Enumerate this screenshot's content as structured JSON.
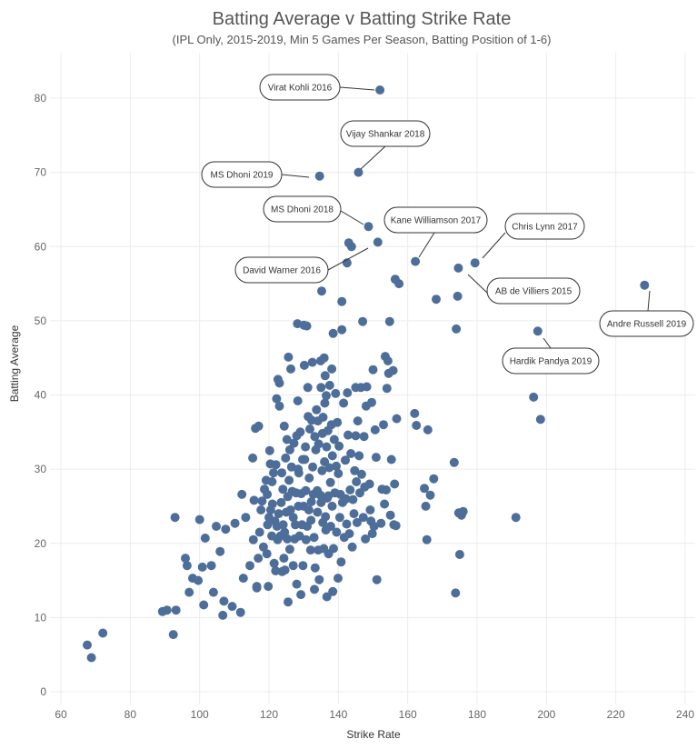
{
  "chart_data": {
    "type": "scatter",
    "title": "Batting Average v Batting Strike Rate",
    "subtitle": "(IPL Only, 2015-2019, Min 5 Games Per Season, Batting Position of 1-6)",
    "xlabel": "Strike Rate",
    "ylabel": "Batting Average",
    "xlim": [
      60,
      240
    ],
    "ylim": [
      0,
      85
    ],
    "xticks": [
      60,
      80,
      100,
      120,
      140,
      160,
      180,
      200,
      220,
      240
    ],
    "yticks": [
      0,
      10,
      20,
      30,
      40,
      50,
      60,
      70,
      80
    ],
    "grid": true,
    "point_color": "#4e6e9a",
    "annotations": [
      {
        "label": "Virat Kohli 2016",
        "x": 152,
        "y": 81.1
      },
      {
        "label": "Vijay Shankar 2018",
        "x": 146,
        "y": 70
      },
      {
        "label": "MS Dhoni 2019",
        "x": 134.6,
        "y": 69.5
      },
      {
        "label": "MS Dhoni 2018",
        "x": 148.7,
        "y": 62.7
      },
      {
        "label": "Kane Williamson 2017",
        "x": 162.2,
        "y": 58
      },
      {
        "label": "Chris Lynn 2017",
        "x": 179.4,
        "y": 57.8
      },
      {
        "label": "David Warner 2016",
        "x": 151.4,
        "y": 60.6
      },
      {
        "label": "AB de Villiers 2015",
        "x": 174.6,
        "y": 57.1
      },
      {
        "label": "Andre Russell 2019",
        "x": 228.3,
        "y": 54.8
      },
      {
        "label": "Hardik Pandya 2019",
        "x": 197.5,
        "y": 48.6
      }
    ],
    "points": [
      [
        67.6,
        6.3
      ],
      [
        68.8,
        4.6
      ],
      [
        72.1,
        7.9
      ],
      [
        89.3,
        10.8
      ],
      [
        90.6,
        11
      ],
      [
        92.4,
        7.7
      ],
      [
        92.9,
        23.5
      ],
      [
        93.2,
        11
      ],
      [
        95.9,
        18
      ],
      [
        96.4,
        17
      ],
      [
        97,
        13.4
      ],
      [
        98,
        15.3
      ],
      [
        99.6,
        15
      ],
      [
        100,
        23.2
      ],
      [
        100.8,
        16.8
      ],
      [
        101.2,
        11.7
      ],
      [
        101.6,
        20.7
      ],
      [
        103.4,
        17
      ],
      [
        104,
        13.4
      ],
      [
        104.8,
        22.3
      ],
      [
        105.9,
        18.9
      ],
      [
        106.7,
        10.3
      ],
      [
        107,
        12.2
      ],
      [
        107.5,
        21.9
      ],
      [
        109.4,
        11.5
      ],
      [
        110.2,
        22.7
      ],
      [
        111.8,
        10.7
      ],
      [
        112.2,
        26.6
      ],
      [
        112.6,
        15.3
      ],
      [
        113.3,
        23.5
      ],
      [
        114.5,
        17
      ],
      [
        115.3,
        31.5
      ],
      [
        115.5,
        20.5
      ],
      [
        115.7,
        25.8
      ],
      [
        116.1,
        35.5
      ],
      [
        116.5,
        14.2
      ],
      [
        116.5,
        14
      ],
      [
        116.9,
        18
      ],
      [
        117,
        35.8
      ],
      [
        117.3,
        21.5
      ],
      [
        117.7,
        24.5
      ],
      [
        118,
        25.7
      ],
      [
        118.4,
        19.5
      ],
      [
        118.7,
        27.3
      ],
      [
        119.2,
        28.5
      ],
      [
        119.4,
        18.6
      ],
      [
        119.5,
        26.6
      ],
      [
        119.6,
        22.5
      ],
      [
        119.8,
        14.2
      ],
      [
        120,
        23.5
      ],
      [
        120.2,
        32.5
      ],
      [
        120.4,
        30.7
      ],
      [
        120.5,
        24.5
      ],
      [
        120.8,
        21
      ],
      [
        120.9,
        28.3
      ],
      [
        121,
        25.3
      ],
      [
        121.3,
        29.5
      ],
      [
        121.5,
        17.3
      ],
      [
        121.7,
        23
      ],
      [
        121.9,
        16.3
      ],
      [
        122,
        30.6
      ],
      [
        122.2,
        39.5
      ],
      [
        122.3,
        22.3
      ],
      [
        122.5,
        20.5
      ],
      [
        122.6,
        42.1
      ],
      [
        122.8,
        24
      ],
      [
        123,
        41.6
      ],
      [
        123,
        38.5
      ],
      [
        123.3,
        21
      ],
      [
        123.5,
        25.5
      ],
      [
        123.7,
        29.5
      ],
      [
        123.8,
        16.2
      ],
      [
        124,
        27.3
      ],
      [
        124.1,
        22.5
      ],
      [
        124.3,
        18
      ],
      [
        124.4,
        35.8
      ],
      [
        124.5,
        21.5
      ],
      [
        124.6,
        16.4
      ],
      [
        124.8,
        31.5
      ],
      [
        125,
        24.2
      ],
      [
        125.2,
        34
      ],
      [
        125.3,
        20.6
      ],
      [
        125.4,
        26.3
      ],
      [
        125.5,
        12.1
      ],
      [
        125.6,
        45.1
      ],
      [
        125.8,
        28.5
      ],
      [
        126,
        19.2
      ],
      [
        126,
        32.6
      ],
      [
        126.2,
        24.5
      ],
      [
        126.3,
        43.5
      ],
      [
        126.5,
        30.3
      ],
      [
        126.7,
        27
      ],
      [
        127,
        17
      ],
      [
        127,
        23.5
      ],
      [
        127.2,
        33.5
      ],
      [
        127.4,
        20.6
      ],
      [
        127.6,
        22.5
      ],
      [
        127.8,
        26.8
      ],
      [
        128,
        34.5
      ],
      [
        128,
        14.5
      ],
      [
        128.2,
        49.6
      ],
      [
        128.3,
        39.2
      ],
      [
        128.4,
        30
      ],
      [
        128.5,
        25
      ],
      [
        128.6,
        29.5
      ],
      [
        128.8,
        21
      ],
      [
        129,
        35
      ],
      [
        129.2,
        13.1
      ],
      [
        129.3,
        26.7
      ],
      [
        129.5,
        22.5
      ],
      [
        129.7,
        31.3
      ],
      [
        129.8,
        17
      ],
      [
        130,
        25
      ],
      [
        130.1,
        49.4
      ],
      [
        130.2,
        44
      ],
      [
        130.3,
        31.3
      ],
      [
        130.5,
        33
      ],
      [
        130.6,
        27.1
      ],
      [
        130.7,
        20.5
      ],
      [
        130.9,
        49.3
      ],
      [
        131,
        22.3
      ],
      [
        131.2,
        41
      ],
      [
        131.3,
        37.1
      ],
      [
        131.5,
        24.5
      ],
      [
        131.6,
        28.8
      ],
      [
        131.8,
        35.4
      ],
      [
        132,
        19.1
      ],
      [
        132.1,
        23.1
      ],
      [
        132.2,
        25.6
      ],
      [
        132.3,
        36.6
      ],
      [
        132.5,
        44.4
      ],
      [
        132.6,
        30.3
      ],
      [
        132.8,
        26.6
      ],
      [
        133,
        20.8
      ],
      [
        133.1,
        13.8
      ],
      [
        133.2,
        34.4
      ],
      [
        133.3,
        16.7
      ],
      [
        133.5,
        32.6
      ],
      [
        133.7,
        38
      ],
      [
        133.9,
        27.1
      ],
      [
        134,
        24.2
      ],
      [
        134.1,
        36.5
      ],
      [
        134.2,
        19.1
      ],
      [
        134.3,
        33.4
      ],
      [
        134.5,
        15.1
      ],
      [
        134.6,
        69.5
      ],
      [
        134.8,
        26.5
      ],
      [
        134.9,
        44.6
      ],
      [
        135,
        41
      ],
      [
        135,
        25.5
      ],
      [
        135.2,
        54
      ],
      [
        135.3,
        29.8
      ],
      [
        135.4,
        34.8
      ],
      [
        135.5,
        22.8
      ],
      [
        135.6,
        37
      ],
      [
        135.8,
        19.3
      ],
      [
        135.9,
        45
      ],
      [
        136,
        31
      ],
      [
        136.1,
        38.9
      ],
      [
        136.2,
        42.6
      ],
      [
        136.3,
        23.6
      ],
      [
        136.4,
        21.8
      ],
      [
        136.5,
        39.9
      ],
      [
        136.6,
        33
      ],
      [
        136.7,
        12.8
      ],
      [
        136.8,
        26.1
      ],
      [
        137,
        35.2
      ],
      [
        137.1,
        26.4
      ],
      [
        137.2,
        18.6
      ],
      [
        137.4,
        30.2
      ],
      [
        137.5,
        41.3
      ],
      [
        137.7,
        28.2
      ],
      [
        137.8,
        22.3
      ],
      [
        138,
        36
      ],
      [
        138.1,
        43.5
      ],
      [
        138.2,
        25
      ],
      [
        138.3,
        31.8
      ],
      [
        138.4,
        13.5
      ],
      [
        138.5,
        48.3
      ],
      [
        138.6,
        19.3
      ],
      [
        138.8,
        34
      ],
      [
        139,
        26.8
      ],
      [
        139.2,
        40.2
      ],
      [
        139.4,
        30.4
      ],
      [
        139.5,
        21.5
      ],
      [
        139.7,
        36.3
      ],
      [
        139.9,
        15.3
      ],
      [
        140,
        29.4
      ],
      [
        140.2,
        33.1
      ],
      [
        140.4,
        23.5
      ],
      [
        140.6,
        26.6
      ],
      [
        140.8,
        17.5
      ],
      [
        141,
        52.6
      ],
      [
        141,
        48.8
      ],
      [
        141.2,
        25.5
      ],
      [
        141.5,
        38.9
      ],
      [
        141.7,
        20.8
      ],
      [
        142,
        31.2
      ],
      [
        142.2,
        26
      ],
      [
        142.4,
        22.6
      ],
      [
        142.5,
        57.8
      ],
      [
        142.6,
        40.3
      ],
      [
        142.8,
        34.6
      ],
      [
        143,
        60.5
      ],
      [
        143.2,
        21.3
      ],
      [
        143.4,
        27.2
      ],
      [
        143.6,
        32.1
      ],
      [
        143.8,
        60
      ],
      [
        144,
        19.5
      ],
      [
        144.2,
        25.9
      ],
      [
        144.5,
        24
      ],
      [
        144.7,
        29.8
      ],
      [
        145,
        41
      ],
      [
        145,
        34.5
      ],
      [
        145.2,
        28.3
      ],
      [
        145.4,
        22.8
      ],
      [
        145.6,
        36.5
      ],
      [
        145.8,
        70
      ],
      [
        146,
        31.8
      ],
      [
        146.2,
        26.8
      ],
      [
        146.5,
        41
      ],
      [
        146.7,
        29.3
      ],
      [
        147,
        49.9
      ],
      [
        147.2,
        23.5
      ],
      [
        147.4,
        34.4
      ],
      [
        147.6,
        27.6
      ],
      [
        147.8,
        20.6
      ],
      [
        148,
        38.5
      ],
      [
        148.2,
        41.1
      ],
      [
        148.7,
        62.7
      ],
      [
        149,
        28
      ],
      [
        149.2,
        24.5
      ],
      [
        149.4,
        23
      ],
      [
        149.6,
        39
      ],
      [
        149.8,
        21.3
      ],
      [
        150,
        43.4
      ],
      [
        150.3,
        22.3
      ],
      [
        150.6,
        35.3
      ],
      [
        150.9,
        31.6
      ],
      [
        151.1,
        15.1
      ],
      [
        151.4,
        60.6
      ],
      [
        152,
        81.1
      ],
      [
        152.3,
        22.7
      ],
      [
        152.6,
        27.3
      ],
      [
        153,
        36
      ],
      [
        153.3,
        25.3
      ],
      [
        153.5,
        45.2
      ],
      [
        153.8,
        27.2
      ],
      [
        154,
        40.9
      ],
      [
        154.3,
        44.6
      ],
      [
        154.5,
        42.9
      ],
      [
        154.8,
        49.9
      ],
      [
        155,
        23.8
      ],
      [
        155.3,
        31.3
      ],
      [
        155.8,
        43.3
      ],
      [
        156,
        22.5
      ],
      [
        156.2,
        28
      ],
      [
        156.4,
        55.6
      ],
      [
        156.6,
        22.4
      ],
      [
        156.8,
        36.8
      ],
      [
        157.5,
        55
      ],
      [
        162,
        37.5
      ],
      [
        162.2,
        58
      ],
      [
        162.5,
        35.9
      ],
      [
        164.8,
        27.4
      ],
      [
        165.2,
        25
      ],
      [
        165.5,
        20.5
      ],
      [
        165.8,
        35.3
      ],
      [
        166.5,
        26.5
      ],
      [
        167.5,
        28.7
      ],
      [
        168.2,
        52.9
      ],
      [
        173.4,
        30.9
      ],
      [
        173.8,
        13.3
      ],
      [
        174,
        48.9
      ],
      [
        174.4,
        53.3
      ],
      [
        174.6,
        57.1
      ],
      [
        174.7,
        24.1
      ],
      [
        175,
        18.5
      ],
      [
        175.5,
        23.8
      ],
      [
        176,
        24.3
      ],
      [
        179.4,
        57.8
      ],
      [
        191.2,
        23.5
      ],
      [
        196.3,
        39.7
      ],
      [
        197.5,
        48.6
      ],
      [
        198.3,
        36.7
      ],
      [
        228.3,
        54.8
      ]
    ]
  }
}
